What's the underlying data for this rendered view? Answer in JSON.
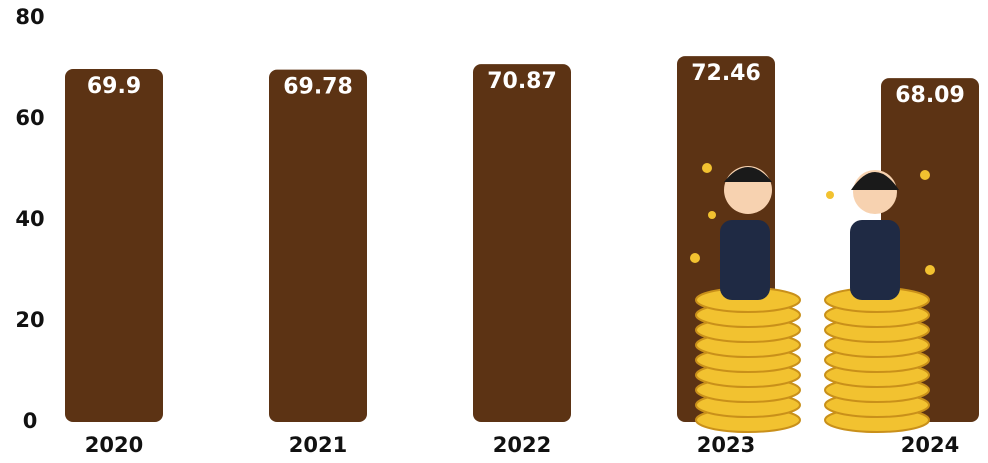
{
  "chart_data": {
    "type": "bar",
    "categories": [
      "2020",
      "2021",
      "2022",
      "2023",
      "2024"
    ],
    "values": [
      69.9,
      69.78,
      70.87,
      72.46,
      68.09
    ],
    "color": "#5c3314",
    "ylim": [
      0,
      80
    ],
    "yticks": [
      0,
      20,
      40,
      60,
      80
    ],
    "grid": false
  }
}
